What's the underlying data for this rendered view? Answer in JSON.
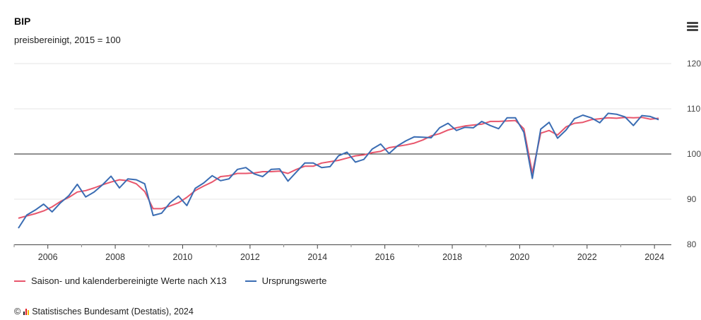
{
  "header": {
    "title": "BIP",
    "subtitle": "preisbereinigt, 2015 = 100"
  },
  "menu": {
    "icon": "hamburger-menu-icon"
  },
  "legend": {
    "series1_label": "Saison- und kalenderbereinigte Werte nach X13",
    "series2_label": "Ursprungswerte"
  },
  "credits": {
    "copyright_symbol": "©",
    "logo_icon": "destatis-logo-icon",
    "text": "Statistisches Bundesamt (Destatis), 2024"
  },
  "colors": {
    "adjusted": "#e8566c",
    "original": "#3b6db3",
    "reference_line": "#222222",
    "grid": "#e6e6e6"
  },
  "chart_data": {
    "type": "line",
    "title": "BIP",
    "subtitle": "preisbereinigt, 2015 = 100",
    "xlabel": "",
    "ylabel": "",
    "xlim": [
      2005.0,
      2024.5
    ],
    "ylim": [
      80,
      120
    ],
    "x_ticks": [
      "2006",
      "2008",
      "2010",
      "2012",
      "2014",
      "2016",
      "2018",
      "2020",
      "2022",
      "2024"
    ],
    "y_ticks": [
      "80",
      "90",
      "100",
      "110",
      "120"
    ],
    "reference_line": 100,
    "grid": "horizontal",
    "legend_position": "bottom-left",
    "x": [
      2005.125,
      2005.375,
      2005.625,
      2005.875,
      2006.125,
      2006.375,
      2006.625,
      2006.875,
      2007.125,
      2007.375,
      2007.625,
      2007.875,
      2008.125,
      2008.375,
      2008.625,
      2008.875,
      2009.125,
      2009.375,
      2009.625,
      2009.875,
      2010.125,
      2010.375,
      2010.625,
      2010.875,
      2011.125,
      2011.375,
      2011.625,
      2011.875,
      2012.125,
      2012.375,
      2012.625,
      2012.875,
      2013.125,
      2013.375,
      2013.625,
      2013.875,
      2014.125,
      2014.375,
      2014.625,
      2014.875,
      2015.125,
      2015.375,
      2015.625,
      2015.875,
      2016.125,
      2016.375,
      2016.625,
      2016.875,
      2017.125,
      2017.375,
      2017.625,
      2017.875,
      2018.125,
      2018.375,
      2018.625,
      2018.875,
      2019.125,
      2019.375,
      2019.625,
      2019.875,
      2020.125,
      2020.375,
      2020.625,
      2020.875,
      2021.125,
      2021.375,
      2021.625,
      2021.875,
      2022.125,
      2022.375,
      2022.625,
      2022.875,
      2023.125,
      2023.375,
      2023.625,
      2023.875,
      2024.125
    ],
    "series": [
      {
        "name": "Saison- und kalenderbereinigte Werte nach X13",
        "color": "#e8566c",
        "values": [
          85.8,
          86.3,
          86.8,
          87.4,
          88.3,
          89.5,
          90.4,
          91.6,
          91.9,
          92.5,
          93.2,
          93.8,
          94.3,
          94.1,
          93.4,
          91.7,
          87.9,
          87.9,
          88.5,
          89.2,
          90.4,
          91.9,
          92.9,
          93.8,
          95.0,
          95.2,
          95.7,
          95.7,
          95.8,
          96.1,
          96.1,
          96.2,
          95.7,
          96.6,
          97.3,
          97.3,
          98.0,
          98.3,
          98.6,
          99.1,
          99.6,
          99.8,
          100.3,
          100.6,
          101.4,
          101.7,
          102.0,
          102.4,
          103.1,
          104.0,
          104.5,
          105.3,
          105.8,
          106.2,
          106.4,
          106.6,
          107.2,
          107.2,
          107.3,
          107.4,
          105.6,
          95.8,
          104.6,
          105.2,
          104.2,
          106.0,
          106.8,
          107.0,
          107.6,
          107.8,
          108.0,
          107.9,
          108.1,
          108.0,
          108.1,
          107.7,
          107.9
        ]
      },
      {
        "name": "Ursprungswerte",
        "color": "#3b6db3",
        "values": [
          83.6,
          86.5,
          87.6,
          88.9,
          87.2,
          89.2,
          90.8,
          93.3,
          90.5,
          91.6,
          93.2,
          95.1,
          92.5,
          94.5,
          94.3,
          93.4,
          86.4,
          86.9,
          89.2,
          90.7,
          88.6,
          92.4,
          93.6,
          95.2,
          94.1,
          94.5,
          96.6,
          97.0,
          95.6,
          95.0,
          96.6,
          96.7,
          94.0,
          96.0,
          98.0,
          98.0,
          97.0,
          97.2,
          99.6,
          100.4,
          98.2,
          98.8,
          101.1,
          102.2,
          100.1,
          101.8,
          102.9,
          103.8,
          103.7,
          103.6,
          105.8,
          106.8,
          105.2,
          105.9,
          105.8,
          107.2,
          106.3,
          105.6,
          108.0,
          108.0,
          104.8,
          94.6,
          105.5,
          107.0,
          103.5,
          105.3,
          107.8,
          108.6,
          108.0,
          106.9,
          109.0,
          108.8,
          108.2,
          106.3,
          108.5,
          108.3,
          107.6
        ]
      }
    ]
  }
}
